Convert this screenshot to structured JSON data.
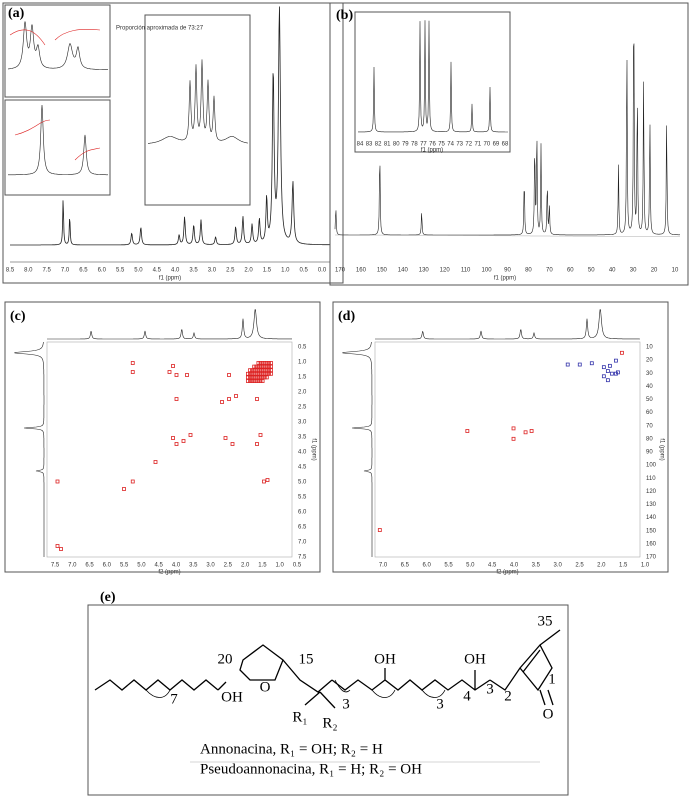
{
  "panel_a": {
    "label": "(a)",
    "note": "Proporción aproximada de 73:27",
    "x_label": "f1 (ppm)",
    "x_ticks": [
      "8.5",
      "8.0",
      "7.5",
      "7.0",
      "6.5",
      "6.0",
      "5.5",
      "5.0",
      "4.5",
      "4.0",
      "3.5",
      "3.0",
      "2.5",
      "2.0",
      "1.5",
      "1.0",
      "0.5",
      "0.0"
    ]
  },
  "panel_b": {
    "label": "(b)",
    "x_label": "f1 (ppm)",
    "x_ticks": [
      "170",
      "160",
      "150",
      "140",
      "130",
      "120",
      "110",
      "100",
      "90",
      "80",
      "70",
      "60",
      "50",
      "40",
      "30",
      "20",
      "10"
    ],
    "inset_ticks": [
      "84",
      "83",
      "82",
      "81",
      "80",
      "79",
      "78",
      "77",
      "76",
      "75",
      "74",
      "73",
      "72",
      "71",
      "70",
      "69",
      "68"
    ],
    "inset_label": "f1 (ppm)"
  },
  "panel_c": {
    "label": "(c)",
    "x_label": "f2 (ppm)",
    "y_label": "f1 (ppm)",
    "x_ticks": [
      "7.5",
      "7.0",
      "6.5",
      "6.0",
      "5.5",
      "5.0",
      "4.5",
      "4.0",
      "3.5",
      "3.0",
      "2.5",
      "2.0",
      "1.5",
      "1.0",
      "0.5"
    ],
    "y_ticks": [
      "0.5",
      "1.0",
      "1.5",
      "2.0",
      "2.5",
      "3.0",
      "3.5",
      "4.0",
      "4.5",
      "5.0",
      "5.5",
      "6.0",
      "6.5",
      "7.0",
      "7.5"
    ]
  },
  "panel_d": {
    "label": "(d)",
    "x_label": "f2 (ppm)",
    "y_label": "f1 (ppm)",
    "x_ticks": [
      "7.0",
      "6.5",
      "6.0",
      "5.5",
      "5.0",
      "4.5",
      "4.0",
      "3.5",
      "3.0",
      "2.5",
      "2.0",
      "1.5",
      "1.0"
    ],
    "y_ticks": [
      "10",
      "20",
      "30",
      "40",
      "50",
      "60",
      "70",
      "80",
      "90",
      "100",
      "110",
      "120",
      "130",
      "140",
      "150",
      "160",
      "170"
    ]
  },
  "panel_e": {
    "label": "(e)",
    "atoms": [
      "35",
      "OH",
      "OH",
      "20",
      "15",
      "3",
      "4",
      "2",
      "1",
      "O",
      "O",
      "OH",
      "7",
      "3",
      "3",
      "R₁",
      "R₂"
    ],
    "captions": [
      "Annonacina, R₁ = OH; R₂ = H",
      "Pseudoannonacina, R₁ = H; R₂ = OH"
    ]
  }
}
